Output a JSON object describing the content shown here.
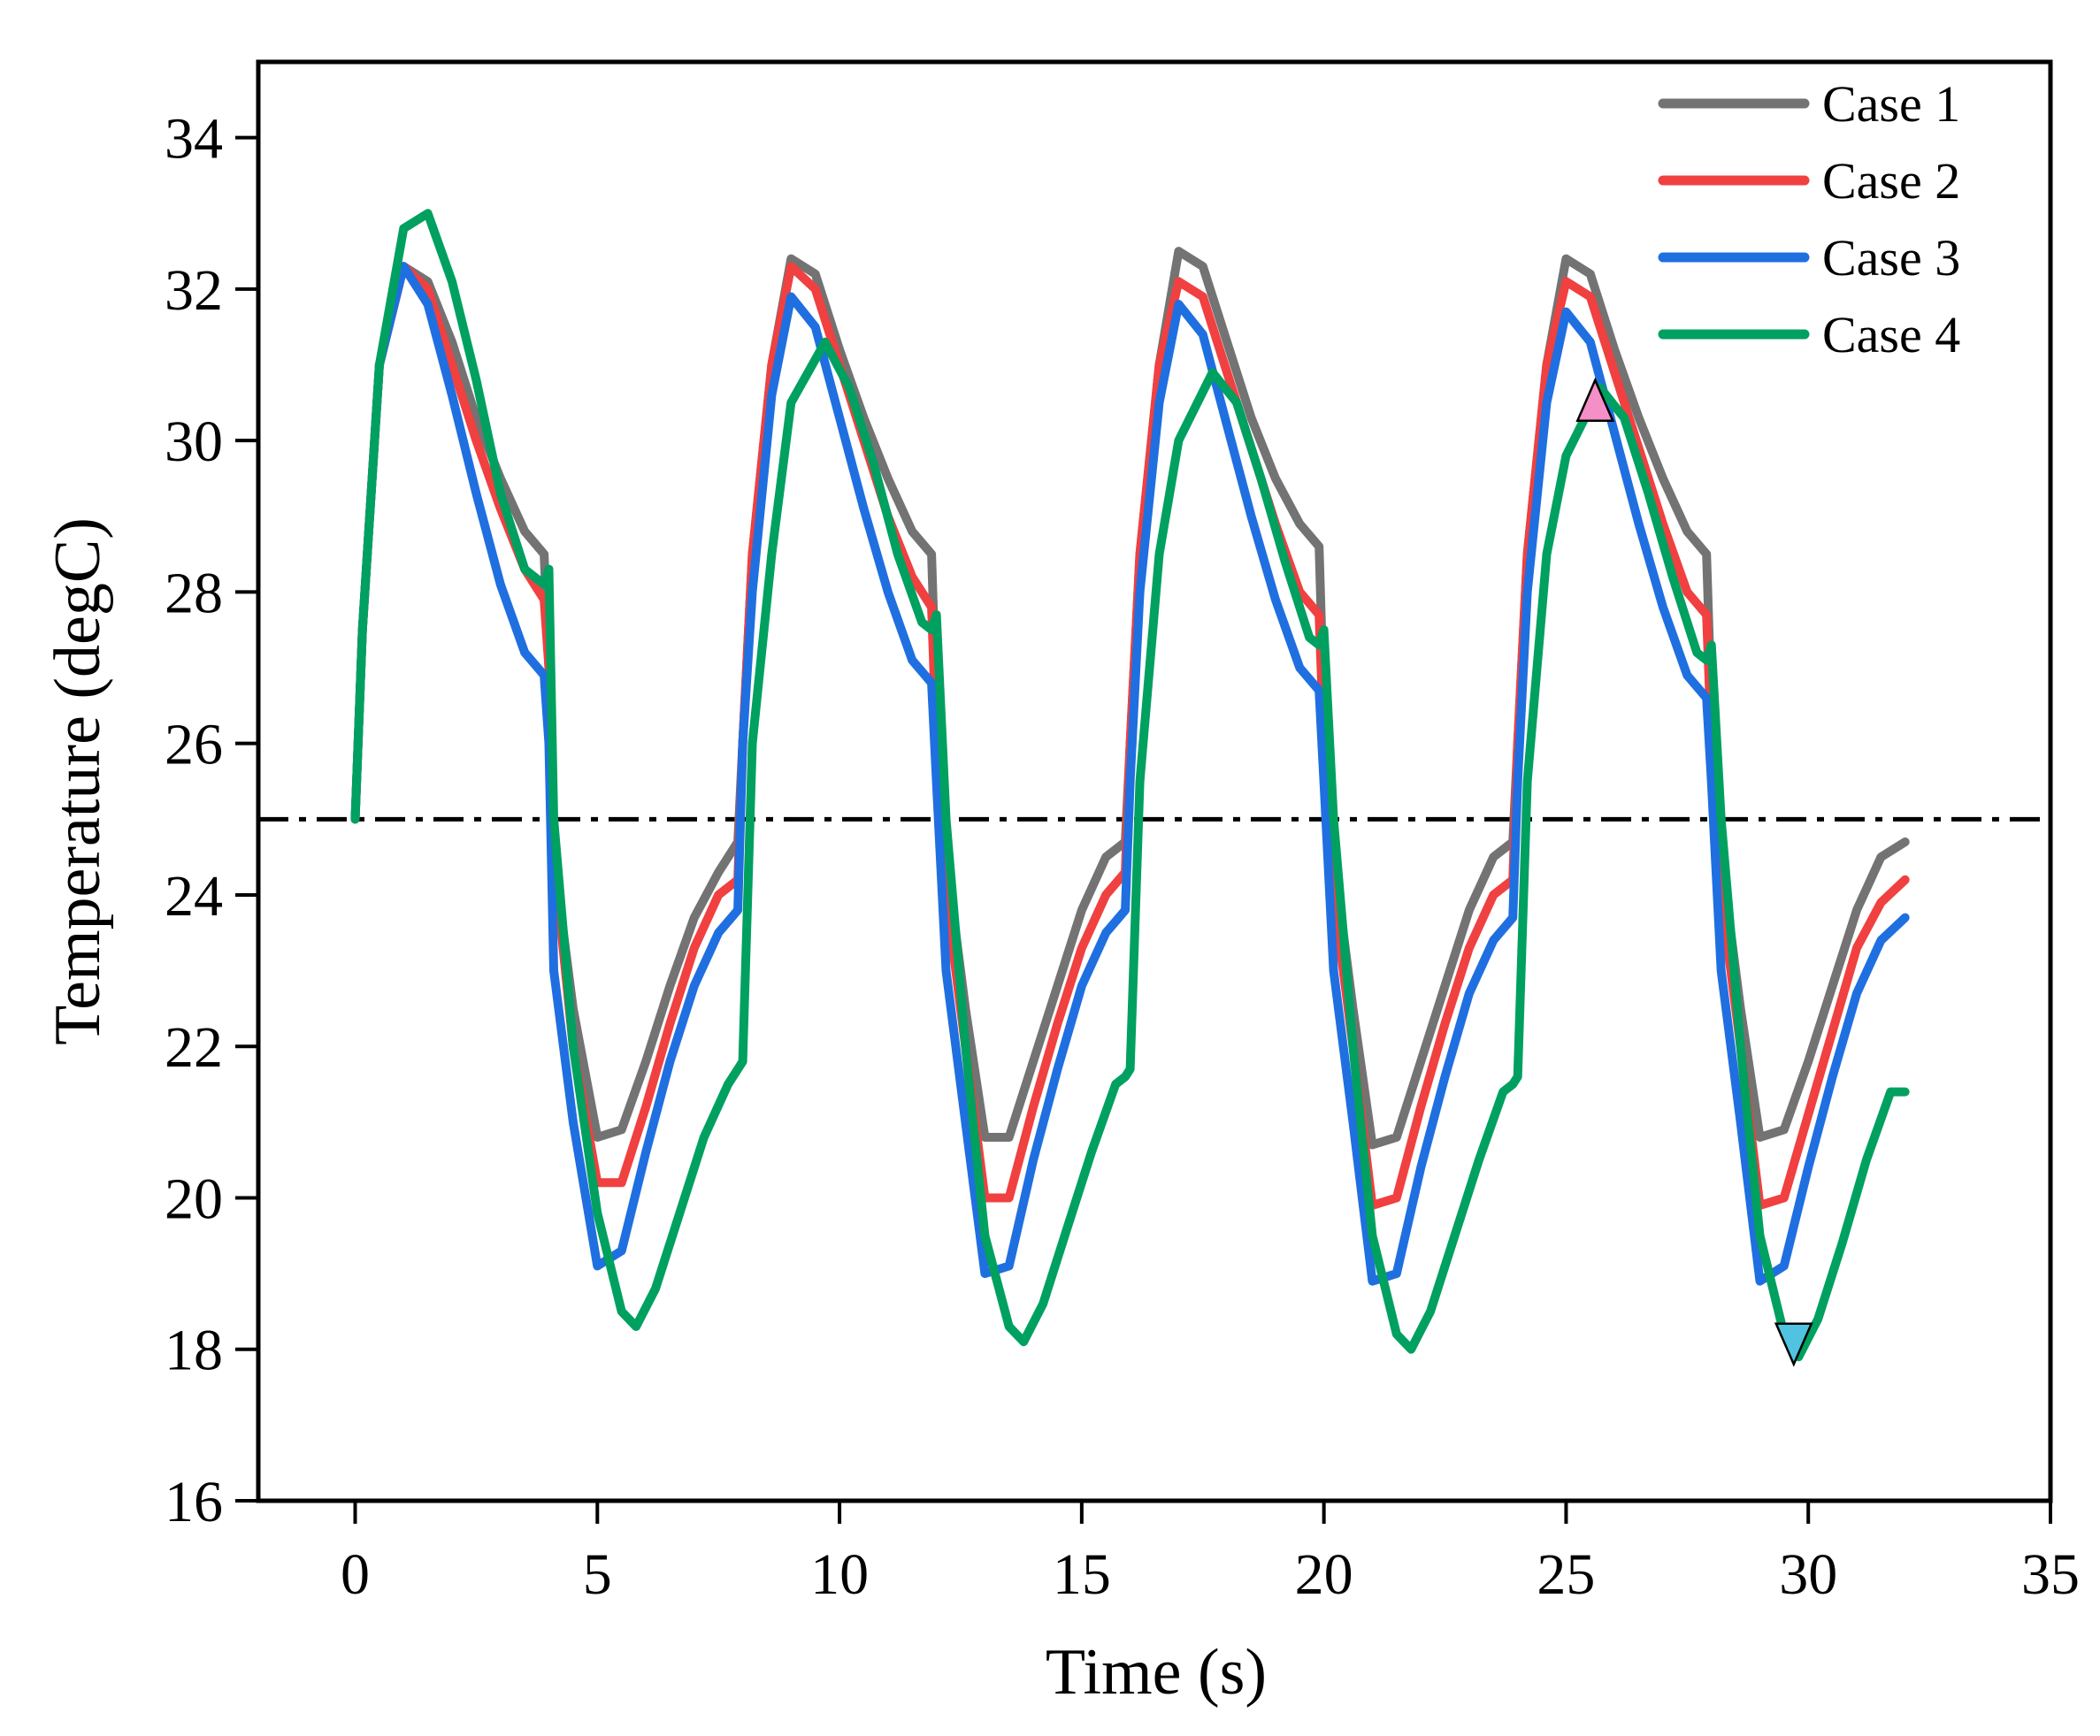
{
  "chart_data": {
    "type": "line",
    "title": "",
    "xlabel": "Time (s)",
    "ylabel": "Temperature (degC)",
    "xlim": [
      -2,
      35
    ],
    "ylim": [
      16,
      35
    ],
    "xticks": [
      0,
      5,
      10,
      15,
      20,
      25,
      30,
      35
    ],
    "yticks": [
      16,
      18,
      20,
      22,
      24,
      26,
      28,
      30,
      32,
      34
    ],
    "grid": false,
    "legend_position": "top-right",
    "reference_line": {
      "y": 25,
      "style": "dash-dot",
      "color": "#000000"
    },
    "markers": [
      {
        "name": "max-marker",
        "shape": "triangle-up",
        "x": 25.6,
        "y": 30.4,
        "color": "#f48fc8"
      },
      {
        "name": "min-marker",
        "shape": "triangle-down",
        "x": 29.7,
        "y": 18.2,
        "color": "#4fc3e0"
      }
    ],
    "series": [
      {
        "name": "Case 1",
        "color": "#737373",
        "x": [
          0,
          0.15,
          0.5,
          1.0,
          1.5,
          2.0,
          2.5,
          3.0,
          3.5,
          3.9,
          4.0,
          4.1,
          4.5,
          5.0,
          5.5,
          6.0,
          6.5,
          7.0,
          7.5,
          7.9,
          8.0,
          8.2,
          8.6,
          9.0,
          9.5,
          10.0,
          10.5,
          11.0,
          11.5,
          11.9,
          12.0,
          12.2,
          12.6,
          13.0,
          13.5,
          14.0,
          14.5,
          15.0,
          15.5,
          15.9,
          16.0,
          16.2,
          16.6,
          17.0,
          17.5,
          18.0,
          18.5,
          19.0,
          19.5,
          19.9,
          20.0,
          20.2,
          20.6,
          21.0,
          21.5,
          22.0,
          22.5,
          23.0,
          23.5,
          23.9,
          24.0,
          24.2,
          24.6,
          25.0,
          25.5,
          26.0,
          26.5,
          27.0,
          27.5,
          27.9,
          28.0,
          28.2,
          28.6,
          29.0,
          29.5,
          30.0,
          30.5,
          31.0,
          31.5,
          32.0
        ],
        "values": [
          25.0,
          27.5,
          31.0,
          32.3,
          32.1,
          31.3,
          30.3,
          29.5,
          28.8,
          28.5,
          27.0,
          24.5,
          22.5,
          20.8,
          20.9,
          21.8,
          22.8,
          23.7,
          24.3,
          24.7,
          26.0,
          28.5,
          31.0,
          32.4,
          32.2,
          31.2,
          30.3,
          29.5,
          28.8,
          28.5,
          26.5,
          24.5,
          22.5,
          20.8,
          20.8,
          21.8,
          22.8,
          23.8,
          24.5,
          24.7,
          26.0,
          28.5,
          31.0,
          32.5,
          32.3,
          31.3,
          30.3,
          29.5,
          28.9,
          28.6,
          26.5,
          24.5,
          22.5,
          20.7,
          20.8,
          21.8,
          22.8,
          23.8,
          24.5,
          24.7,
          26.0,
          28.5,
          31.0,
          32.4,
          32.2,
          31.2,
          30.3,
          29.5,
          28.8,
          28.5,
          26.5,
          24.5,
          22.5,
          20.8,
          20.9,
          21.8,
          22.8,
          23.8,
          24.5,
          24.7
        ]
      },
      {
        "name": "Case 2",
        "color": "#f04040",
        "x": [
          0,
          0.15,
          0.5,
          1.0,
          1.5,
          2.0,
          2.5,
          3.0,
          3.5,
          3.9,
          4.0,
          4.1,
          4.5,
          5.0,
          5.5,
          6.0,
          6.5,
          7.0,
          7.5,
          7.9,
          8.0,
          8.2,
          8.6,
          9.0,
          9.5,
          10.0,
          10.5,
          11.0,
          11.5,
          11.9,
          12.0,
          12.2,
          12.6,
          13.0,
          13.5,
          14.0,
          14.5,
          15.0,
          15.5,
          15.9,
          16.0,
          16.2,
          16.6,
          17.0,
          17.5,
          18.0,
          18.5,
          19.0,
          19.5,
          19.9,
          20.0,
          20.2,
          20.6,
          21.0,
          21.5,
          22.0,
          22.5,
          23.0,
          23.5,
          23.9,
          24.0,
          24.2,
          24.6,
          25.0,
          25.5,
          26.0,
          26.5,
          27.0,
          27.5,
          27.9,
          28.0,
          28.2,
          28.6,
          29.0,
          29.5,
          30.0,
          30.5,
          31.0,
          31.5,
          32.0
        ],
        "values": [
          25.0,
          27.5,
          31.0,
          32.3,
          32.0,
          31.0,
          30.0,
          29.1,
          28.3,
          27.9,
          27.0,
          24.5,
          22.0,
          20.2,
          20.2,
          21.2,
          22.3,
          23.3,
          24.0,
          24.2,
          26.0,
          28.5,
          31.0,
          32.3,
          32.0,
          31.0,
          30.0,
          29.0,
          28.2,
          27.8,
          26.0,
          24.0,
          22.0,
          20.0,
          20.0,
          21.2,
          22.3,
          23.3,
          24.0,
          24.3,
          26.0,
          28.5,
          31.0,
          32.1,
          31.9,
          30.9,
          29.9,
          28.9,
          28.0,
          27.7,
          26.0,
          24.0,
          22.0,
          19.9,
          20.0,
          21.2,
          22.3,
          23.3,
          24.0,
          24.2,
          26.0,
          28.5,
          31.0,
          32.1,
          31.9,
          30.9,
          29.9,
          28.9,
          28.0,
          27.7,
          26.0,
          24.0,
          22.0,
          19.9,
          20.0,
          21.1,
          22.2,
          23.3,
          23.9,
          24.2
        ]
      },
      {
        "name": "Case 3",
        "color": "#1f6fe0",
        "x": [
          0,
          0.15,
          0.5,
          1.0,
          1.5,
          2.0,
          2.5,
          3.0,
          3.5,
          3.9,
          4.0,
          4.1,
          4.5,
          5.0,
          5.5,
          6.0,
          6.5,
          7.0,
          7.5,
          7.9,
          8.0,
          8.2,
          8.6,
          9.0,
          9.5,
          10.0,
          10.5,
          11.0,
          11.5,
          11.9,
          12.0,
          12.2,
          12.6,
          13.0,
          13.5,
          14.0,
          14.5,
          15.0,
          15.5,
          15.9,
          16.0,
          16.2,
          16.6,
          17.0,
          17.5,
          18.0,
          18.5,
          19.0,
          19.5,
          19.9,
          20.0,
          20.2,
          20.6,
          21.0,
          21.5,
          22.0,
          22.5,
          23.0,
          23.5,
          23.9,
          24.0,
          24.2,
          24.6,
          25.0,
          25.5,
          26.0,
          26.5,
          27.0,
          27.5,
          27.9,
          28.0,
          28.2,
          28.6,
          29.0,
          29.5,
          30.0,
          30.5,
          31.0,
          31.5,
          32.0
        ],
        "values": [
          25.0,
          27.5,
          31.0,
          32.3,
          31.8,
          30.6,
          29.3,
          28.1,
          27.2,
          26.9,
          26.0,
          23.0,
          21.0,
          19.1,
          19.3,
          20.6,
          21.8,
          22.8,
          23.5,
          23.8,
          26.0,
          28.0,
          30.6,
          31.9,
          31.5,
          30.3,
          29.1,
          28.0,
          27.1,
          26.8,
          25.5,
          23.0,
          21.0,
          19.0,
          19.1,
          20.5,
          21.7,
          22.8,
          23.5,
          23.8,
          25.5,
          28.0,
          30.5,
          31.8,
          31.4,
          30.2,
          29.0,
          27.9,
          27.0,
          26.7,
          25.5,
          23.0,
          21.0,
          18.9,
          19.0,
          20.4,
          21.6,
          22.7,
          23.4,
          23.7,
          25.5,
          28.0,
          30.5,
          31.7,
          31.3,
          30.1,
          28.9,
          27.8,
          26.9,
          26.6,
          25.5,
          23.0,
          21.0,
          18.9,
          19.1,
          20.4,
          21.6,
          22.7,
          23.4,
          23.7
        ]
      },
      {
        "name": "Case 4",
        "color": "#00a060",
        "x": [
          0,
          0.15,
          0.5,
          1.0,
          1.5,
          2.0,
          2.5,
          3.0,
          3.5,
          3.9,
          4.0,
          4.1,
          4.5,
          5.0,
          5.5,
          5.8,
          6.2,
          6.7,
          7.2,
          7.7,
          7.9,
          8.0,
          8.2,
          8.6,
          9.0,
          9.7,
          10.2,
          10.7,
          11.2,
          11.7,
          11.9,
          12.0,
          12.2,
          12.6,
          13.0,
          13.5,
          13.8,
          14.2,
          14.7,
          15.2,
          15.7,
          15.9,
          16.0,
          16.2,
          16.6,
          17.0,
          17.7,
          18.2,
          18.7,
          19.2,
          19.7,
          19.9,
          20.0,
          20.2,
          20.6,
          21.0,
          21.5,
          21.8,
          22.2,
          22.7,
          23.2,
          23.7,
          23.9,
          24.0,
          24.2,
          24.6,
          25.0,
          25.7,
          26.2,
          26.7,
          27.2,
          27.7,
          27.9,
          28.0,
          28.2,
          28.6,
          29.0,
          29.5,
          29.8,
          30.2,
          30.7,
          31.2,
          31.7,
          32.0
        ],
        "values": [
          25.0,
          27.5,
          31.0,
          32.8,
          33.0,
          32.1,
          30.8,
          29.3,
          28.3,
          28.1,
          28.3,
          25.0,
          22.0,
          19.8,
          18.5,
          18.3,
          18.8,
          19.8,
          20.8,
          21.5,
          21.7,
          21.8,
          26.0,
          28.5,
          30.5,
          31.3,
          30.7,
          29.7,
          28.5,
          27.6,
          27.5,
          27.7,
          25.0,
          22.0,
          19.5,
          18.3,
          18.1,
          18.6,
          19.6,
          20.6,
          21.5,
          21.6,
          21.7,
          25.5,
          28.5,
          30.0,
          30.9,
          30.5,
          29.5,
          28.4,
          27.4,
          27.3,
          27.5,
          25.0,
          22.0,
          19.5,
          18.2,
          18.0,
          18.5,
          19.5,
          20.5,
          21.4,
          21.5,
          21.6,
          25.5,
          28.5,
          29.8,
          30.7,
          30.3,
          29.3,
          28.2,
          27.2,
          27.1,
          27.3,
          25.0,
          22.0,
          19.5,
          18.2,
          17.9,
          18.4,
          19.4,
          20.5,
          21.4,
          21.4
        ]
      }
    ]
  }
}
